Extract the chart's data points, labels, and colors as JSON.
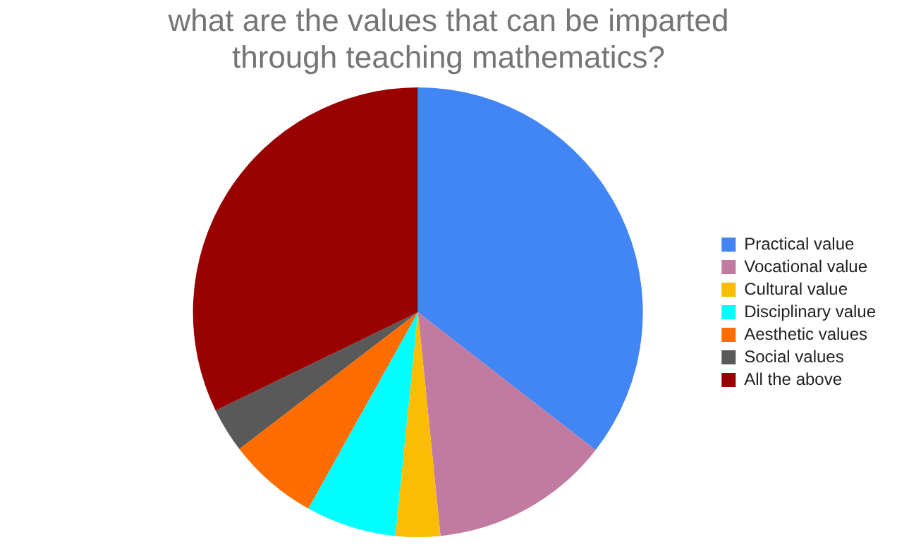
{
  "chart_data": {
    "type": "pie",
    "title": "what are the values that can be imparted through teaching mathematics?",
    "categories": [
      "Practical value",
      "Vocational value",
      "Cultural value",
      "Disciplinary value",
      "Aesthetic values",
      "Social values",
      "All the above"
    ],
    "values": [
      35.5,
      12.9,
      3.2,
      6.5,
      6.5,
      3.2,
      32.2
    ],
    "colors": [
      "#4285f4",
      "#c27ba0",
      "#fbbc04",
      "#00ffff",
      "#ff6d01",
      "#595959",
      "#990000"
    ],
    "legend": "right"
  }
}
